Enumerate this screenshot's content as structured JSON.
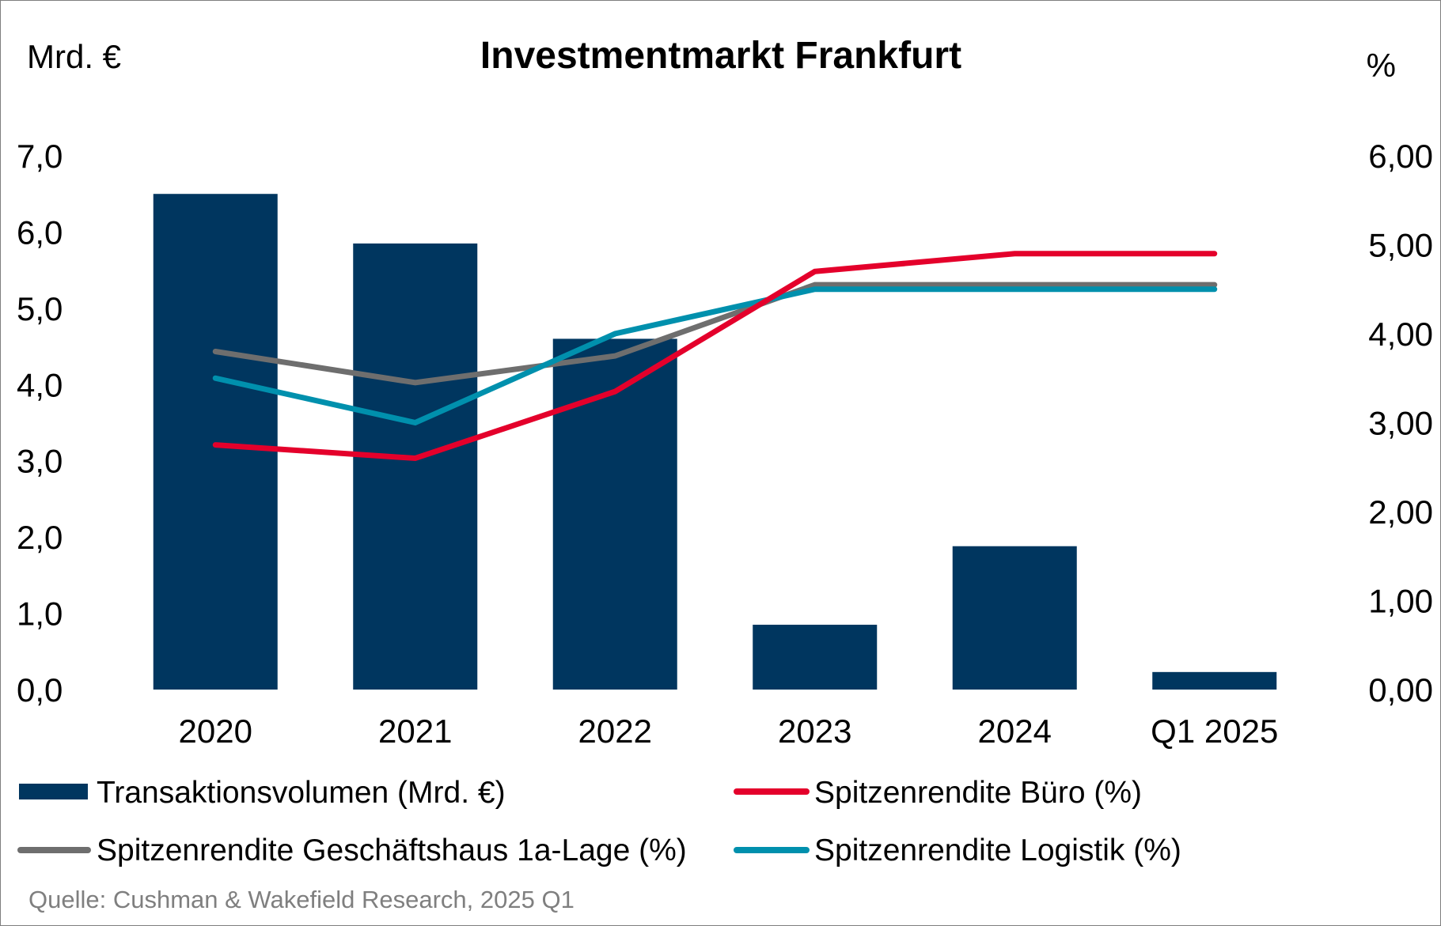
{
  "colors": {
    "bar": "#00365f",
    "red": "#e4002b",
    "gray": "#6e6e6e",
    "teal": "#0090ad",
    "source_text": "#7f7f7f"
  },
  "chart_data": {
    "type": "bar",
    "title": "Investmentmarkt Frankfurt",
    "left_unit": "Mrd. €",
    "right_unit": "%",
    "categories": [
      "2020",
      "2021",
      "2022",
      "2023",
      "2024",
      "Q1 2025"
    ],
    "bars": {
      "name": "Transaktionsvolumen (Mrd. €)",
      "values": [
        6.5,
        5.85,
        4.6,
        0.85,
        1.88,
        0.23
      ]
    },
    "lines": [
      {
        "name": "Spitzenrendite Büro (%)",
        "color_key": "red",
        "values": [
          2.75,
          2.6,
          3.35,
          4.7,
          4.9,
          4.9
        ]
      },
      {
        "name": "Spitzenrendite Geschäftshaus 1a-Lage (%)",
        "color_key": "gray",
        "values": [
          3.8,
          3.45,
          3.75,
          4.55,
          4.55,
          4.55
        ]
      },
      {
        "name": "Spitzenrendite Logistik (%)",
        "color_key": "teal",
        "values": [
          3.5,
          3.0,
          4.0,
          4.5,
          4.5,
          4.5
        ]
      }
    ],
    "ylim_left": [
      0,
      7
    ],
    "ylim_right": [
      0,
      6
    ],
    "left_ticks": [
      "0,0",
      "1,0",
      "2,0",
      "3,0",
      "4,0",
      "5,0",
      "6,0",
      "7,0"
    ],
    "right_ticks": [
      "0,00",
      "1,00",
      "2,00",
      "3,00",
      "4,00",
      "5,00",
      "6,00"
    ],
    "grid": false,
    "legend_position": "bottom",
    "source": "Quelle: Cushman & Wakefield Research, 2025 Q1"
  }
}
